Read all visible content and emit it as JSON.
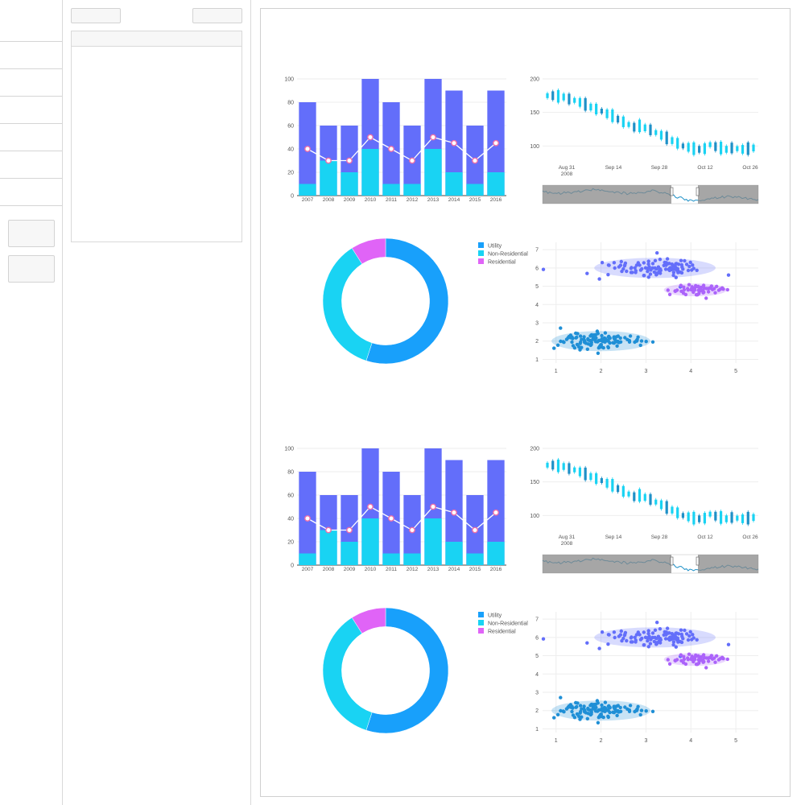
{
  "app": {
    "title": ""
  },
  "colors": {
    "bar_total": "#636efa",
    "bar_part": "#19d3f3",
    "line": "#ffffff",
    "line_marker": "#ef6fa8",
    "pie_utility": "#18a0fb",
    "pie_nonres": "#19d3f3",
    "pie_res": "#e064f7",
    "candle": "#1e90c7",
    "candle_light": "#19d3f3",
    "range_bg": "#888888",
    "scatter_a": "#636efa",
    "scatter_b": "#ab63fa",
    "scatter_c": "#1f8fd6"
  },
  "chart_data": [
    {
      "type": "bar",
      "categories": [
        "2007",
        "2008",
        "2009",
        "2010",
        "2011",
        "2012",
        "2013",
        "2014",
        "2015",
        "2016"
      ],
      "series": [
        {
          "values": [
            80,
            60,
            60,
            100,
            80,
            60,
            100,
            90,
            60,
            90
          ]
        },
        {
          "values": [
            10,
            30,
            20,
            40,
            10,
            10,
            40,
            20,
            10,
            20
          ]
        },
        {
          "values": [
            40,
            30,
            30,
            50,
            40,
            30,
            50,
            45,
            30,
            45
          ]
        }
      ],
      "ylim": [
        0,
        100
      ],
      "yticks": [
        "0",
        "20",
        "40",
        "60",
        "80",
        "100"
      ]
    },
    {
      "type": "line",
      "kind": "candlestick",
      "xticks": [
        "Aug 31\n2008",
        "Sep 14",
        "Sep 28",
        "Oct 12",
        "Oct 26"
      ],
      "yticks": [
        "100",
        "150",
        "200"
      ],
      "ylim": [
        80,
        200
      ],
      "values": [
        175,
        175,
        174,
        173,
        170,
        168,
        165,
        162,
        158,
        155,
        152,
        148,
        145,
        140,
        136,
        132,
        128,
        130,
        127,
        124,
        120,
        116,
        112,
        108,
        104,
        100,
        98,
        96,
        95,
        96,
        102,
        99,
        97,
        95,
        97,
        96,
        95,
        96,
        97
      ]
    },
    {
      "type": "pie",
      "hole": 0.7,
      "labels": [
        "Utility",
        "Non-Residential",
        "Residential"
      ],
      "values": [
        55,
        36,
        9
      ]
    },
    {
      "type": "scatter",
      "xticks": [
        "1",
        "2",
        "3",
        "4",
        "5"
      ],
      "yticks": [
        "1",
        "2",
        "3",
        "4",
        "5",
        "6",
        "7"
      ],
      "xlim": [
        0.7,
        5.5
      ],
      "ylim": [
        0.8,
        7.4
      ],
      "clusters": [
        {
          "cx": 3.2,
          "cy": 6.0,
          "rx": 1.35,
          "ry": 0.55,
          "n": 110
        },
        {
          "cx": 4.1,
          "cy": 4.8,
          "rx": 0.7,
          "ry": 0.35,
          "n": 55
        },
        {
          "cx": 2.0,
          "cy": 2.0,
          "rx": 1.1,
          "ry": 0.55,
          "n": 120
        }
      ]
    }
  ]
}
